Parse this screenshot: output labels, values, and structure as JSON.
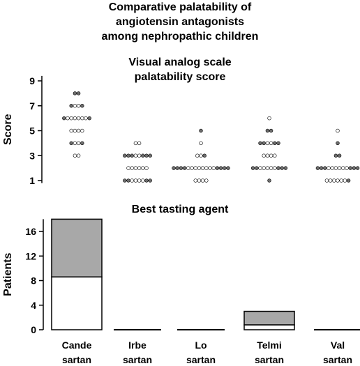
{
  "header": {
    "title_lines": [
      "Comparative palatability of",
      "angiotensin antagonists",
      "among nephropathic children"
    ]
  },
  "categories": [
    [
      "Cande",
      "sartan"
    ],
    [
      "Irbe",
      "sartan"
    ],
    [
      "Lo",
      "sartan"
    ],
    [
      "Telmi",
      "sartan"
    ],
    [
      "Val",
      "sartan"
    ]
  ],
  "chart_data": [
    {
      "type": "scatter",
      "title": "Visual analog scale palatability score",
      "title_lines": [
        "Visual analog scale",
        "palatability score"
      ],
      "ylabel": "Score",
      "yticks": [
        1,
        3,
        5,
        7,
        9
      ],
      "ylim": [
        0.8,
        9.4
      ],
      "categories": [
        "Candesartan",
        "Irbesartan",
        "Losartan",
        "Telmisartan",
        "Valsartan"
      ],
      "series": [
        {
          "groups": [
            {
              "y": 8,
              "open": 0,
              "filled": 2
            },
            {
              "y": 7,
              "open": 2,
              "filled": 2
            },
            {
              "y": 6,
              "open": 6,
              "filled": 2
            },
            {
              "y": 5,
              "open": 4,
              "filled": 0
            },
            {
              "y": 4,
              "open": 2,
              "filled": 2
            },
            {
              "y": 3,
              "open": 2,
              "filled": 0
            }
          ]
        },
        {
          "groups": [
            {
              "y": 4,
              "open": 2,
              "filled": 0
            },
            {
              "y": 3,
              "open": 2,
              "filled": 6
            },
            {
              "y": 2,
              "open": 6,
              "filled": 0
            },
            {
              "y": 1,
              "open": 4,
              "filled": 4
            }
          ]
        },
        {
          "groups": [
            {
              "y": 5,
              "open": 0,
              "filled": 1
            },
            {
              "y": 4,
              "open": 1,
              "filled": 0
            },
            {
              "y": 3,
              "open": 2,
              "filled": 1
            },
            {
              "y": 2,
              "open": 8,
              "filled": 8
            },
            {
              "y": 1,
              "open": 4,
              "filled": 0
            }
          ]
        },
        {
          "groups": [
            {
              "y": 6,
              "open": 1,
              "filled": 0
            },
            {
              "y": 5,
              "open": 0,
              "filled": 2
            },
            {
              "y": 4,
              "open": 2,
              "filled": 4
            },
            {
              "y": 3,
              "open": 4,
              "filled": 0
            },
            {
              "y": 2,
              "open": 5,
              "filled": 5
            },
            {
              "y": 1,
              "open": 0,
              "filled": 1
            }
          ]
        },
        {
          "groups": [
            {
              "y": 5,
              "open": 1,
              "filled": 0
            },
            {
              "y": 4,
              "open": 0,
              "filled": 1
            },
            {
              "y": 3,
              "open": 0,
              "filled": 2
            },
            {
              "y": 2,
              "open": 6,
              "filled": 6
            },
            {
              "y": 1,
              "open": 6,
              "filled": 1
            }
          ]
        }
      ],
      "colors": {
        "filled": "#6e6e6e",
        "open": "#ffffff",
        "stroke": "#000000"
      }
    },
    {
      "type": "bar",
      "stacked": true,
      "title": "Best tasting agent",
      "ylabel": "Patients",
      "yticks": [
        0,
        4,
        8,
        12,
        16
      ],
      "ylim": [
        0,
        18
      ],
      "categories": [
        "Candesartan",
        "Irbesartan",
        "Losartan",
        "Telmisartan",
        "Valsartan"
      ],
      "series": [
        {
          "values": [
            8.6,
            0,
            0,
            0.8,
            0
          ],
          "color": "#ffffff"
        },
        {
          "values": [
            9.4,
            0,
            0,
            2.2,
            0
          ],
          "color": "#a8a8a8"
        }
      ]
    }
  ]
}
